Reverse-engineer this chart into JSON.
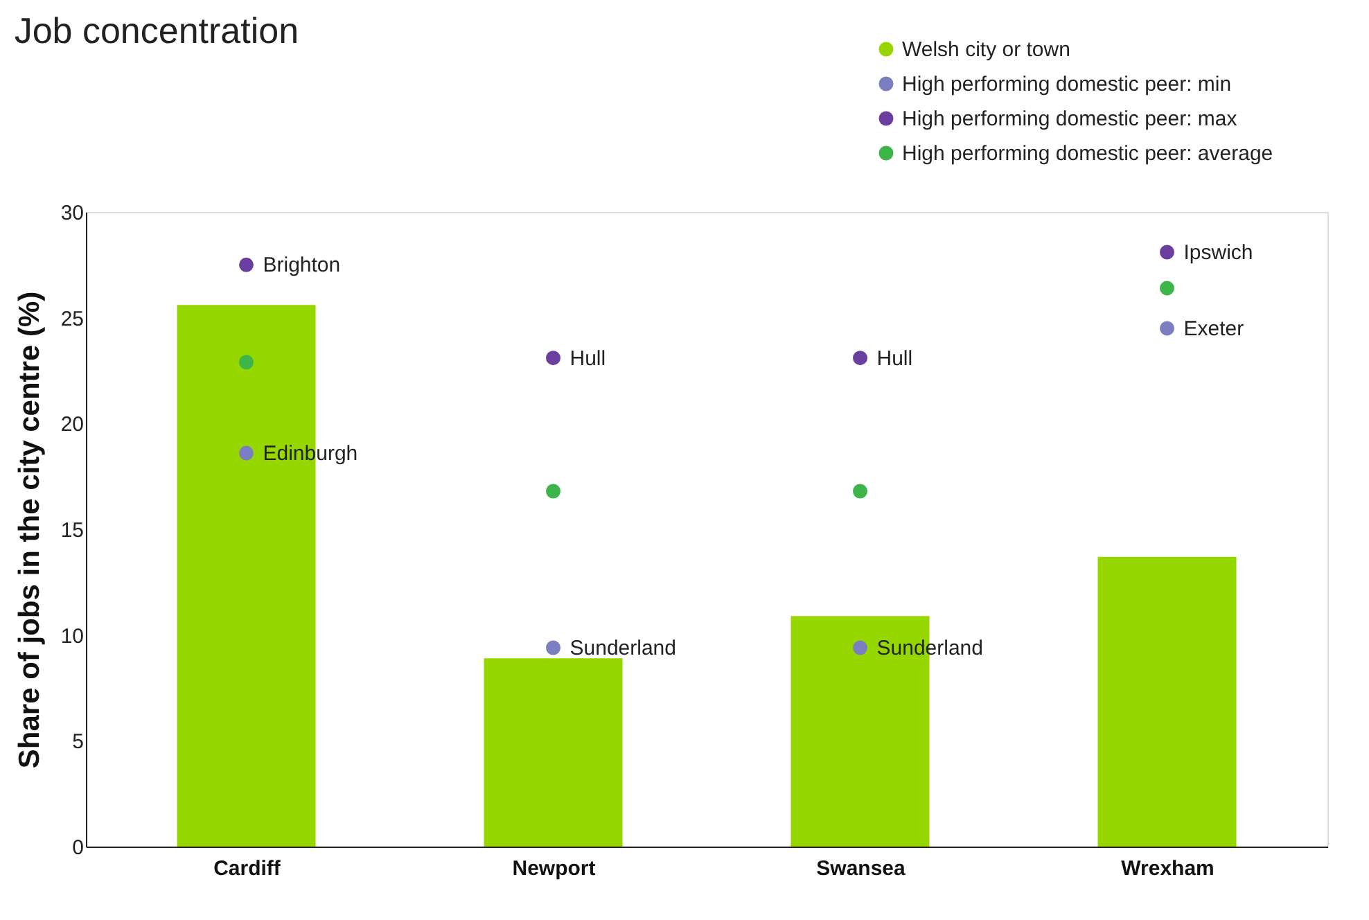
{
  "chart_data": {
    "type": "bar",
    "title": "Job concentration",
    "ylabel": "Share of jobs in the city centre (%)",
    "categories": [
      "Cardiff",
      "Newport",
      "Swansea",
      "Wrexham"
    ],
    "series": [
      {
        "name": "Welsh city or town",
        "color": "#97d700",
        "values": [
          25.6,
          8.9,
          10.9,
          13.7
        ]
      },
      {
        "name": "High performing domestic peer: min",
        "type": "scatter",
        "color": "#7b7ec0",
        "x": [
          "Cardiff",
          "Newport",
          "Swansea",
          "Wrexham"
        ],
        "values": [
          18.6,
          9.4,
          9.4,
          24.5
        ]
      },
      {
        "name": "High performing domestic peer: max",
        "type": "scatter",
        "color": "#6b3fa0",
        "x": [
          "Cardiff",
          "Newport",
          "Swansea",
          "Wrexham"
        ],
        "values": [
          27.5,
          23.1,
          23.1,
          28.1
        ]
      },
      {
        "name": "High performing domestic peer: average",
        "type": "scatter",
        "color": "#3db54a",
        "x": [
          "Cardiff",
          "Newport",
          "Swansea",
          "Wrexham"
        ],
        "values": [
          22.9,
          16.8,
          16.8,
          26.4
        ]
      }
    ],
    "annotations": [
      {
        "text": "Brighton",
        "x": "Cardiff",
        "y": 27.5
      },
      {
        "text": "Edinburgh",
        "x": "Cardiff",
        "y": 18.6
      },
      {
        "text": "Hull",
        "x": "Newport",
        "y": 23.1
      },
      {
        "text": "Sunderland",
        "x": "Newport",
        "y": 9.4
      },
      {
        "text": "Hull",
        "x": "Swansea",
        "y": 23.1
      },
      {
        "text": "Sunderland",
        "x": "Swansea",
        "y": 9.4
      },
      {
        "text": "Ipswich",
        "x": "Wrexham",
        "y": 28.1
      },
      {
        "text": "Exeter",
        "x": "Wrexham",
        "y": 24.5
      }
    ],
    "ylim": [
      0,
      30
    ],
    "yticks": [
      0,
      5,
      10,
      15,
      20,
      25,
      30
    ],
    "grid": false,
    "legend": "top right",
    "marker": "circle"
  }
}
